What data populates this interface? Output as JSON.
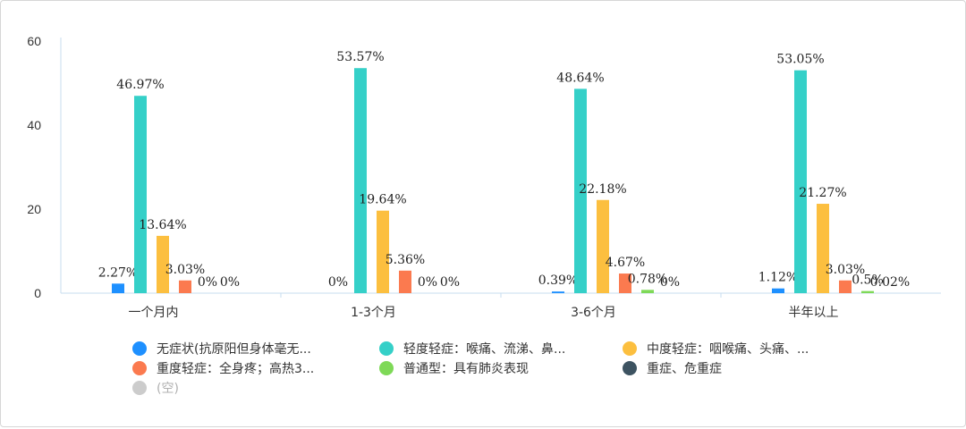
{
  "chart_data": {
    "type": "bar",
    "categories": [
      "一个月内",
      "1-3个月",
      "3-6个月",
      "半年以上"
    ],
    "ylim": [
      0,
      60
    ],
    "yticks": [
      0,
      20,
      40,
      60
    ],
    "grid": false,
    "legend_position": "bottom",
    "series": [
      {
        "name": "无症状(抗原阳但身体毫无...",
        "color": "#1e90ff",
        "values": [
          2.27,
          0,
          0.39,
          1.12
        ],
        "labels": [
          "2.27%",
          "0%",
          "0.39%",
          "1.12%"
        ]
      },
      {
        "name": "轻度轻症：喉痛、流涕、鼻...",
        "color": "#35d0c8",
        "values": [
          46.97,
          53.57,
          48.64,
          53.05
        ],
        "labels": [
          "46.97%",
          "53.57%",
          "48.64%",
          "53.05%"
        ]
      },
      {
        "name": "中度轻症：咽喉痛、头痛、...",
        "color": "#fcbf3f",
        "values": [
          13.64,
          19.64,
          22.18,
          21.27
        ],
        "labels": [
          "13.64%",
          "19.64%",
          "22.18%",
          "21.27%"
        ]
      },
      {
        "name": "重度轻症：全身疼；高热3...",
        "color": "#fb7a4f",
        "values": [
          3.03,
          5.36,
          4.67,
          3.03
        ],
        "labels": [
          "3.03%",
          "5.36%",
          "4.67%",
          "3.03%"
        ]
      },
      {
        "name": "普通型：具有肺炎表现",
        "color": "#7ed957",
        "values": [
          0,
          0,
          0.78,
          0.5
        ],
        "labels": [
          "0%",
          "0%",
          "0.78%",
          "0.5%"
        ]
      },
      {
        "name": "重症、危重症",
        "color": "#3d5361",
        "values": [
          0,
          0,
          0,
          0.02
        ],
        "labels": [
          "0%",
          "0%",
          "0%",
          "0.02%"
        ]
      }
    ],
    "extra_legend": [
      {
        "name": "(空)",
        "color": "#cccccc"
      }
    ]
  }
}
